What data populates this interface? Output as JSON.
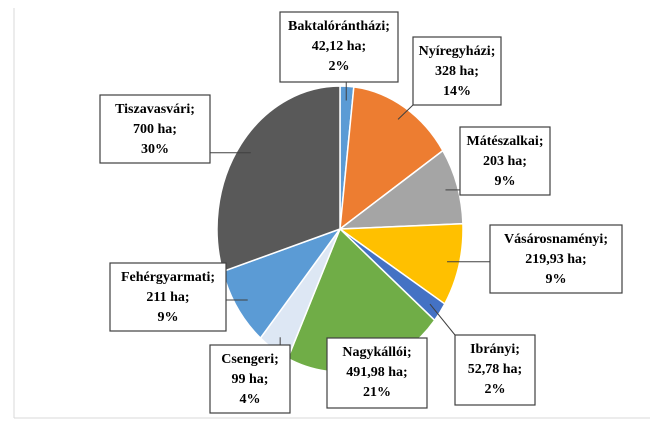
{
  "chart_data": {
    "type": "pie",
    "categories": [
      "Baktalórántházi;",
      "Nyíregyházi;",
      "Mátészalkai;",
      "Vásárosnaményi;",
      "Ibrányi;",
      "Nagykállói;",
      "Csengeri;",
      "Fehérgyarmati;",
      "Tiszavasvári;"
    ],
    "values": [
      42.12,
      328,
      203,
      219.93,
      52.78,
      491.98,
      99,
      211,
      700
    ],
    "value_labels": [
      "42,12 ha;",
      "328 ha;",
      "203 ha;",
      "219,93 ha;",
      "52,78 ha;",
      "491,98 ha;",
      "99 ha;",
      "211 ha;",
      "700 ha;"
    ],
    "percent_labels": [
      "2%",
      "14%",
      "9%",
      "9%",
      "2%",
      "21%",
      "4%",
      "9%",
      "30%"
    ],
    "colors": [
      "#5b9bd5",
      "#ed7d31",
      "#a5a5a5",
      "#ffc000",
      "#4472c4",
      "#70ad47",
      "#dde7f4",
      "#5b9bd5",
      "#595959"
    ]
  }
}
